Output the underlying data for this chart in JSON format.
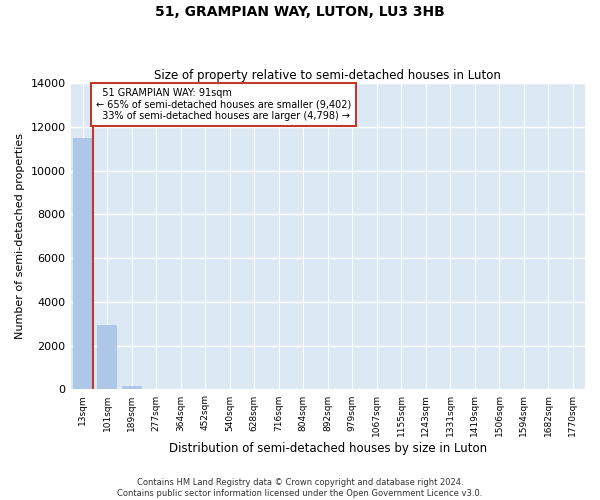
{
  "title": "51, GRAMPIAN WAY, LUTON, LU3 3HB",
  "subtitle": "Size of property relative to semi-detached houses in Luton",
  "xlabel": "Distribution of semi-detached houses by size in Luton",
  "ylabel": "Number of semi-detached properties",
  "property_label": "51 GRAMPIAN WAY: 91sqm",
  "pct_smaller": 65,
  "n_smaller": 9402,
  "pct_larger": 33,
  "n_larger": 4798,
  "bar_color": "#aec6e8",
  "line_color": "#c0392b",
  "box_edge_color": "#c0392b",
  "background_color": "#dce9f5",
  "grid_color": "#ffffff",
  "categories": [
    "13sqm",
    "101sqm",
    "189sqm",
    "277sqm",
    "364sqm",
    "452sqm",
    "540sqm",
    "628sqm",
    "716sqm",
    "804sqm",
    "892sqm",
    "979sqm",
    "1067sqm",
    "1155sqm",
    "1243sqm",
    "1331sqm",
    "1419sqm",
    "1506sqm",
    "1594sqm",
    "1682sqm",
    "1770sqm"
  ],
  "values": [
    11500,
    2950,
    180,
    0,
    0,
    0,
    0,
    0,
    0,
    0,
    0,
    0,
    0,
    0,
    0,
    0,
    0,
    0,
    0,
    0,
    0
  ],
  "ylim": [
    0,
    14000
  ],
  "yticks": [
    0,
    2000,
    4000,
    6000,
    8000,
    10000,
    12000,
    14000
  ],
  "footer_line1": "Contains HM Land Registry data © Crown copyright and database right 2024.",
  "footer_line2": "Contains public sector information licensed under the Open Government Licence v3.0.",
  "fig_width": 6.0,
  "fig_height": 5.0,
  "dpi": 100
}
